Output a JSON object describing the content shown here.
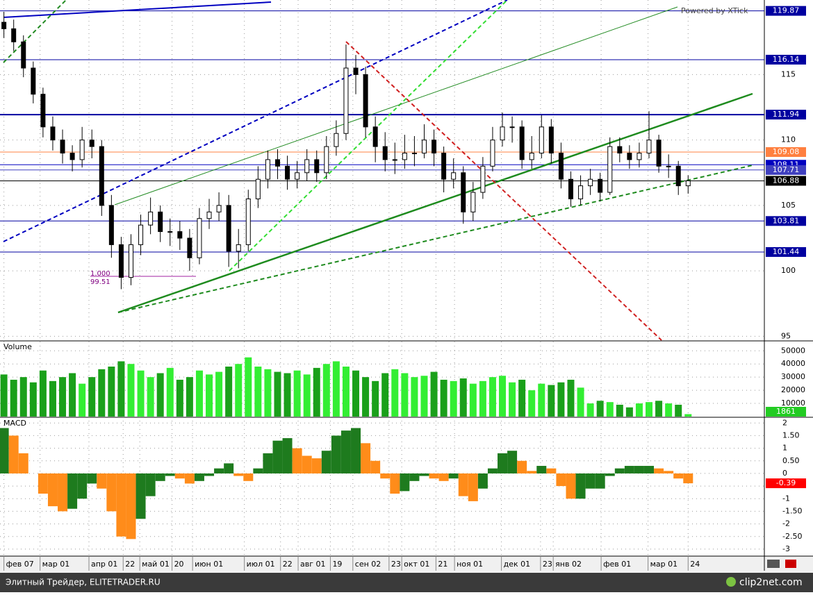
{
  "header": {
    "watermark": "Powered by XTick"
  },
  "footer": {
    "left": "Элитный Трейдер, ELITETRADER.RU",
    "right": "clip2net.com"
  },
  "chart_data": [
    {
      "type": "candlestick",
      "panel": "price",
      "open": [
        119,
        118.5,
        117.5,
        115.5,
        113.5,
        111,
        110,
        109,
        108.5,
        110,
        109.5,
        105,
        102,
        99.5,
        102,
        103.5,
        104.5,
        103,
        103,
        102.5,
        101,
        104,
        104.5,
        105,
        101.5,
        102,
        105.5,
        107,
        108.5,
        108,
        107,
        107.5,
        108.5,
        107.5,
        109.5,
        110.5,
        115.5,
        115,
        111,
        109.5,
        108.5,
        108.5,
        109,
        109,
        110,
        109,
        107,
        107.5,
        104.5,
        106,
        108,
        110,
        111,
        111,
        108.5,
        109,
        111,
        109,
        107,
        105.5,
        106.5,
        107,
        106,
        109.5,
        109,
        108.5,
        109,
        110,
        108,
        108,
        106.5
      ],
      "high": [
        119.8,
        119.2,
        118,
        116,
        114,
        111.8,
        110.8,
        109.6,
        111,
        110.8,
        110,
        105.8,
        102.6,
        102.8,
        104.3,
        105.6,
        105,
        104,
        103.8,
        103.2,
        104.8,
        105.5,
        106,
        105.8,
        103.2,
        106.2,
        108,
        109.2,
        109.3,
        108.8,
        108.4,
        109.3,
        109.2,
        110.3,
        111.5,
        117.3,
        116.5,
        115.6,
        111.8,
        110.6,
        109.8,
        110.4,
        110.3,
        111.2,
        110.8,
        109.5,
        108.6,
        108,
        106.8,
        108.7,
        111,
        112.1,
        111.8,
        111.5,
        110.3,
        111.9,
        111.6,
        109.8,
        107.6,
        107.3,
        107.8,
        107.5,
        110.2,
        110.2,
        109.6,
        109.8,
        112.2,
        110.4,
        108.9,
        108.4,
        107.3
      ],
      "low": [
        117.8,
        116.8,
        114.8,
        112.8,
        110.2,
        109.2,
        108.2,
        107.6,
        107.9,
        108.6,
        104.2,
        101,
        98.6,
        98.9,
        101.2,
        102.8,
        102.2,
        101.9,
        101.6,
        100,
        100.5,
        103.2,
        103.8,
        100.3,
        100.2,
        101.5,
        104.8,
        106.3,
        107,
        106.2,
        106.3,
        106.9,
        106.8,
        107,
        108.8,
        110,
        113.5,
        110.2,
        108.3,
        107.6,
        107.4,
        107.8,
        108,
        108.6,
        108,
        106,
        106.3,
        103.6,
        103.8,
        105.5,
        107.6,
        109.5,
        109.8,
        107.8,
        107.8,
        108.6,
        108.2,
        106.3,
        104.9,
        105,
        105.8,
        105.3,
        105.8,
        108.3,
        107.8,
        107.9,
        108.6,
        107.5,
        107.1,
        105.8,
        105.9
      ],
      "close": [
        118.5,
        117.5,
        115.5,
        113.5,
        111,
        110,
        109,
        108.5,
        110,
        109.5,
        105,
        102,
        99.5,
        102,
        103.5,
        104.5,
        103,
        103,
        102.5,
        101,
        104,
        104.5,
        105,
        101.5,
        102,
        105.5,
        107,
        108.5,
        108,
        107,
        107.5,
        108.5,
        107.5,
        109.5,
        110.5,
        115.5,
        115,
        111,
        109.5,
        108.5,
        108.5,
        109,
        109,
        110,
        109,
        107,
        107.5,
        104.5,
        106,
        108,
        110,
        111,
        111,
        108.5,
        109,
        111,
        109,
        107,
        105.5,
        106.5,
        107,
        106,
        109.5,
        109,
        108.5,
        109,
        110,
        108,
        108,
        106.5,
        106.88
      ],
      "up_color": "#ffffff",
      "down_color": "#000000",
      "ylim": [
        94.7,
        120.7
      ],
      "yticks": [
        95,
        100,
        105,
        110,
        115
      ],
      "grid": true,
      "levels": [
        {
          "value": 119.87,
          "color": "#0000a0"
        },
        {
          "value": 116.14,
          "color": "#0000a0"
        },
        {
          "value": 111.94,
          "color": "#0000a0"
        },
        {
          "value": 109.08,
          "color": "#ff8040"
        },
        {
          "value": 108.11,
          "color": "#0000c0"
        },
        {
          "value": 107.71,
          "color": "#4040c0"
        },
        {
          "value": 106.88,
          "color": "#000000"
        },
        {
          "value": 103.81,
          "color": "#0000a0"
        },
        {
          "value": 101.44,
          "color": "#0000a0"
        }
      ],
      "annotations": [
        "1.000",
        "99.51"
      ]
    },
    {
      "type": "bar",
      "panel": "volume",
      "title": "Volume",
      "values": [
        32000,
        28000,
        30000,
        26000,
        35000,
        27000,
        30000,
        33000,
        25000,
        30000,
        36000,
        38000,
        42000,
        40000,
        35000,
        30000,
        33000,
        37000,
        28000,
        30000,
        35000,
        32000,
        34000,
        38000,
        40000,
        45000,
        38000,
        36000,
        34000,
        33000,
        35000,
        32000,
        37000,
        40000,
        42000,
        38000,
        35000,
        30000,
        27000,
        33000,
        36000,
        33000,
        30000,
        31000,
        34000,
        28000,
        27000,
        29000,
        25000,
        27000,
        30000,
        31000,
        26000,
        28000,
        20000,
        25000,
        24000,
        26000,
        28000,
        22000,
        10000,
        12000,
        11000,
        9000,
        7000,
        10000,
        11000,
        12000,
        10000,
        9000,
        1861
      ],
      "up_color": "#33ee33",
      "down_color": "#1aa01a",
      "last_color": "#22cc22",
      "ylim": [
        0,
        57000
      ],
      "yticks": [
        10000,
        20000,
        30000,
        40000,
        50000
      ],
      "grid": true
    },
    {
      "type": "histogram",
      "panel": "macd",
      "title": "MACD",
      "values": [
        1.8,
        1.5,
        0.8,
        0,
        -0.8,
        -1.3,
        -1.5,
        -1.4,
        -1,
        -0.4,
        -0.6,
        -1.5,
        -2.5,
        -2.6,
        -1.8,
        -0.9,
        -0.3,
        -0.1,
        -0.2,
        -0.4,
        -0.3,
        -0.1,
        0.2,
        0.4,
        -0.1,
        -0.3,
        0.2,
        0.8,
        1.3,
        1.4,
        1,
        0.7,
        0.6,
        0.9,
        1.5,
        1.7,
        1.8,
        1.2,
        0.5,
        -0.2,
        -0.8,
        -0.7,
        -0.3,
        -0.1,
        -0.2,
        -0.3,
        -0.2,
        -0.9,
        -1.1,
        -0.6,
        0.2,
        0.8,
        0.9,
        0.5,
        0.1,
        0.3,
        0.2,
        -0.5,
        -1,
        -1,
        -0.6,
        -0.6,
        -0.1,
        0.2,
        0.3,
        0.3,
        0.3,
        0.2,
        0.1,
        -0.2,
        -0.39
      ],
      "rise_color": "#1e7b1e",
      "fall_color": "#ff8c1a",
      "last_color": "#ff0000",
      "ylim": [
        -3.25,
        2.2
      ],
      "yticks": [
        2,
        {
          "value": 1.5,
          "label": "1.50"
        },
        1,
        {
          "value": 0.5,
          "label": "0.50"
        },
        0,
        {
          "value": -0.5,
          "label": "-0.50"
        },
        -1,
        {
          "value": -1.5,
          "label": "-1.50"
        },
        -2,
        {
          "value": -2.5,
          "label": "-2.50"
        },
        -3
      ],
      "grid": true
    },
    {
      "type": "time-axis",
      "xlim": [
        -0.4,
        77.8
      ],
      "xticks": [
        {
          "value": 0,
          "label": "фев 07"
        },
        {
          "value": 3.7,
          "label": "мар 01"
        },
        {
          "value": 8.7,
          "label": "апр 01"
        },
        {
          "value": 12.2,
          "label": "22"
        },
        {
          "value": 13.9,
          "label": "май 01"
        },
        {
          "value": 17.2,
          "label": "20"
        },
        {
          "value": 19.3,
          "label": "июн 01"
        },
        {
          "value": 24.6,
          "label": "июл 01"
        },
        {
          "value": 28.3,
          "label": "22"
        },
        {
          "value": 30.1,
          "label": "авг 01"
        },
        {
          "value": 33.4,
          "label": "19"
        },
        {
          "value": 35.7,
          "label": "сен 02"
        },
        {
          "value": 39.4,
          "label": "23"
        },
        {
          "value": 40.7,
          "label": "окт 01"
        },
        {
          "value": 44.2,
          "label": "21"
        },
        {
          "value": 46.1,
          "label": "ноя 01"
        },
        {
          "value": 50.9,
          "label": "дек 01"
        },
        {
          "value": 54.9,
          "label": "23"
        },
        {
          "value": 56.2,
          "label": "янв 02"
        },
        {
          "value": 61.1,
          "label": "фев 01"
        },
        {
          "value": 65.9,
          "label": "мар 01"
        },
        {
          "value": 70,
          "label": "24"
        }
      ]
    }
  ]
}
